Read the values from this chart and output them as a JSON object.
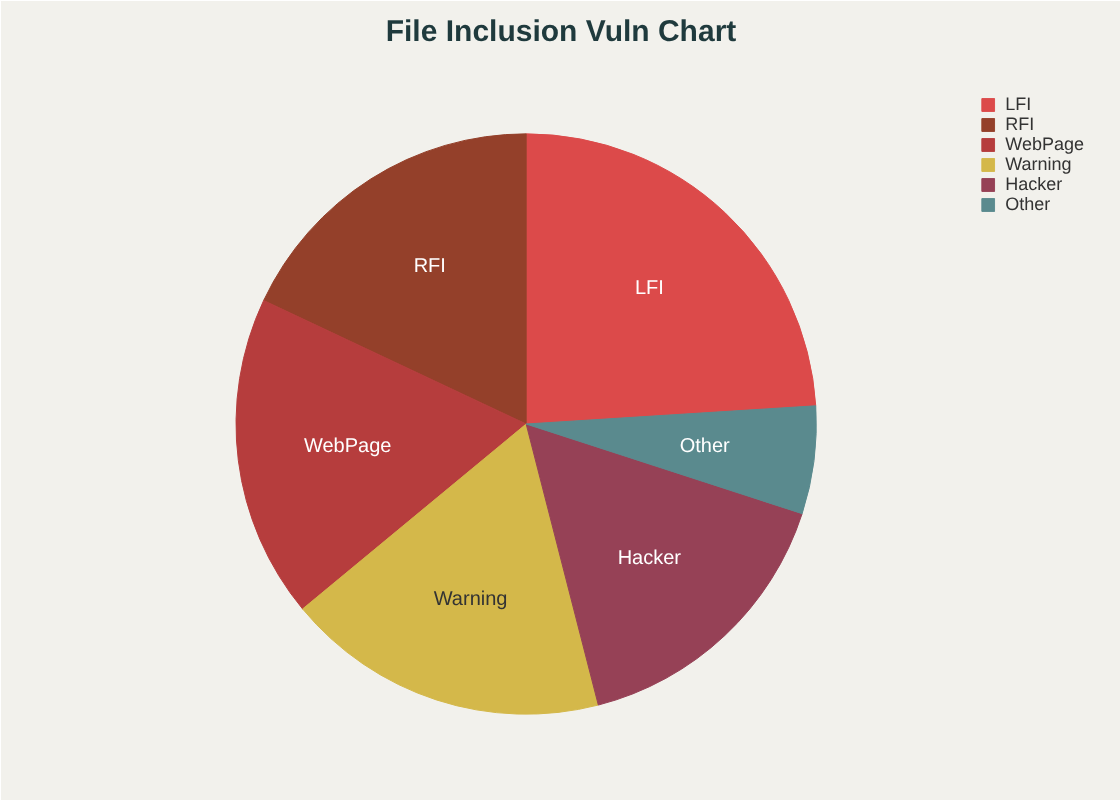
{
  "chart_data": {
    "type": "pie",
    "title": "File Inclusion Vuln Chart",
    "categories": [
      "LFI",
      "RFI",
      "WebPage",
      "Warning",
      "Hacker",
      "Other"
    ],
    "values": [
      24,
      18,
      18,
      18,
      16,
      6
    ],
    "colors": [
      "#dc4a4a",
      "#94402a",
      "#b63d3d",
      "#d4b84a",
      "#964156",
      "#5a8a8e"
    ],
    "legend": "top right"
  }
}
